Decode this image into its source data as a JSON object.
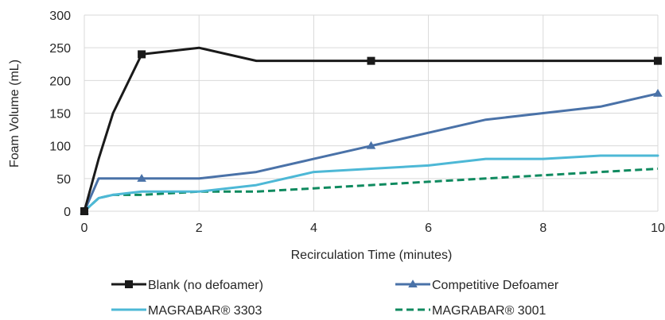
{
  "chart_data": {
    "type": "line",
    "title": "",
    "xlabel": "Recirculation Time (minutes)",
    "ylabel": "Foam Volume (mL)",
    "xlim": [
      0,
      10
    ],
    "ylim": [
      0,
      300
    ],
    "xticks": [
      0,
      2,
      4,
      6,
      8,
      10
    ],
    "yticks": [
      0,
      50,
      100,
      150,
      200,
      250,
      300
    ],
    "grid": true,
    "legend_position": "bottom",
    "series": [
      {
        "name": "Blank (no defoamer)",
        "color": "#1a1a1a",
        "style": "solid",
        "marker": "square",
        "x": [
          0,
          0.25,
          0.5,
          1,
          2,
          3,
          5,
          10
        ],
        "y": [
          0,
          80,
          150,
          240,
          250,
          230,
          230,
          230
        ],
        "marker_x": [
          0,
          1,
          5,
          10
        ],
        "marker_y": [
          0,
          240,
          230,
          230
        ]
      },
      {
        "name": "Competitive Defoamer",
        "color": "#4a72a8",
        "style": "solid",
        "marker": "triangle",
        "x": [
          0,
          0.25,
          1,
          2,
          3,
          4,
          5,
          6,
          7,
          8,
          9,
          10
        ],
        "y": [
          0,
          50,
          50,
          50,
          60,
          80,
          100,
          120,
          140,
          150,
          160,
          180
        ],
        "marker_x": [
          0,
          1,
          5,
          10
        ],
        "marker_y": [
          0,
          50,
          100,
          180
        ]
      },
      {
        "name": "MAGRABAR® 3303",
        "color": "#4db8d6",
        "style": "solid",
        "marker": "none",
        "x": [
          0,
          0.25,
          0.5,
          1,
          2,
          3,
          4,
          5,
          6,
          7,
          8,
          9,
          10
        ],
        "y": [
          0,
          20,
          25,
          30,
          30,
          40,
          60,
          65,
          70,
          80,
          80,
          85,
          85
        ],
        "marker_x": [],
        "marker_y": []
      },
      {
        "name": "MAGRABAR® 3001",
        "color": "#0f8a5f",
        "style": "dashed",
        "marker": "none",
        "x": [
          0,
          0.25,
          0.5,
          1,
          2,
          3,
          4,
          5,
          6,
          7,
          8,
          9,
          10
        ],
        "y": [
          0,
          20,
          25,
          25,
          30,
          30,
          35,
          40,
          45,
          50,
          55,
          60,
          65
        ],
        "marker_x": [],
        "marker_y": []
      }
    ]
  }
}
